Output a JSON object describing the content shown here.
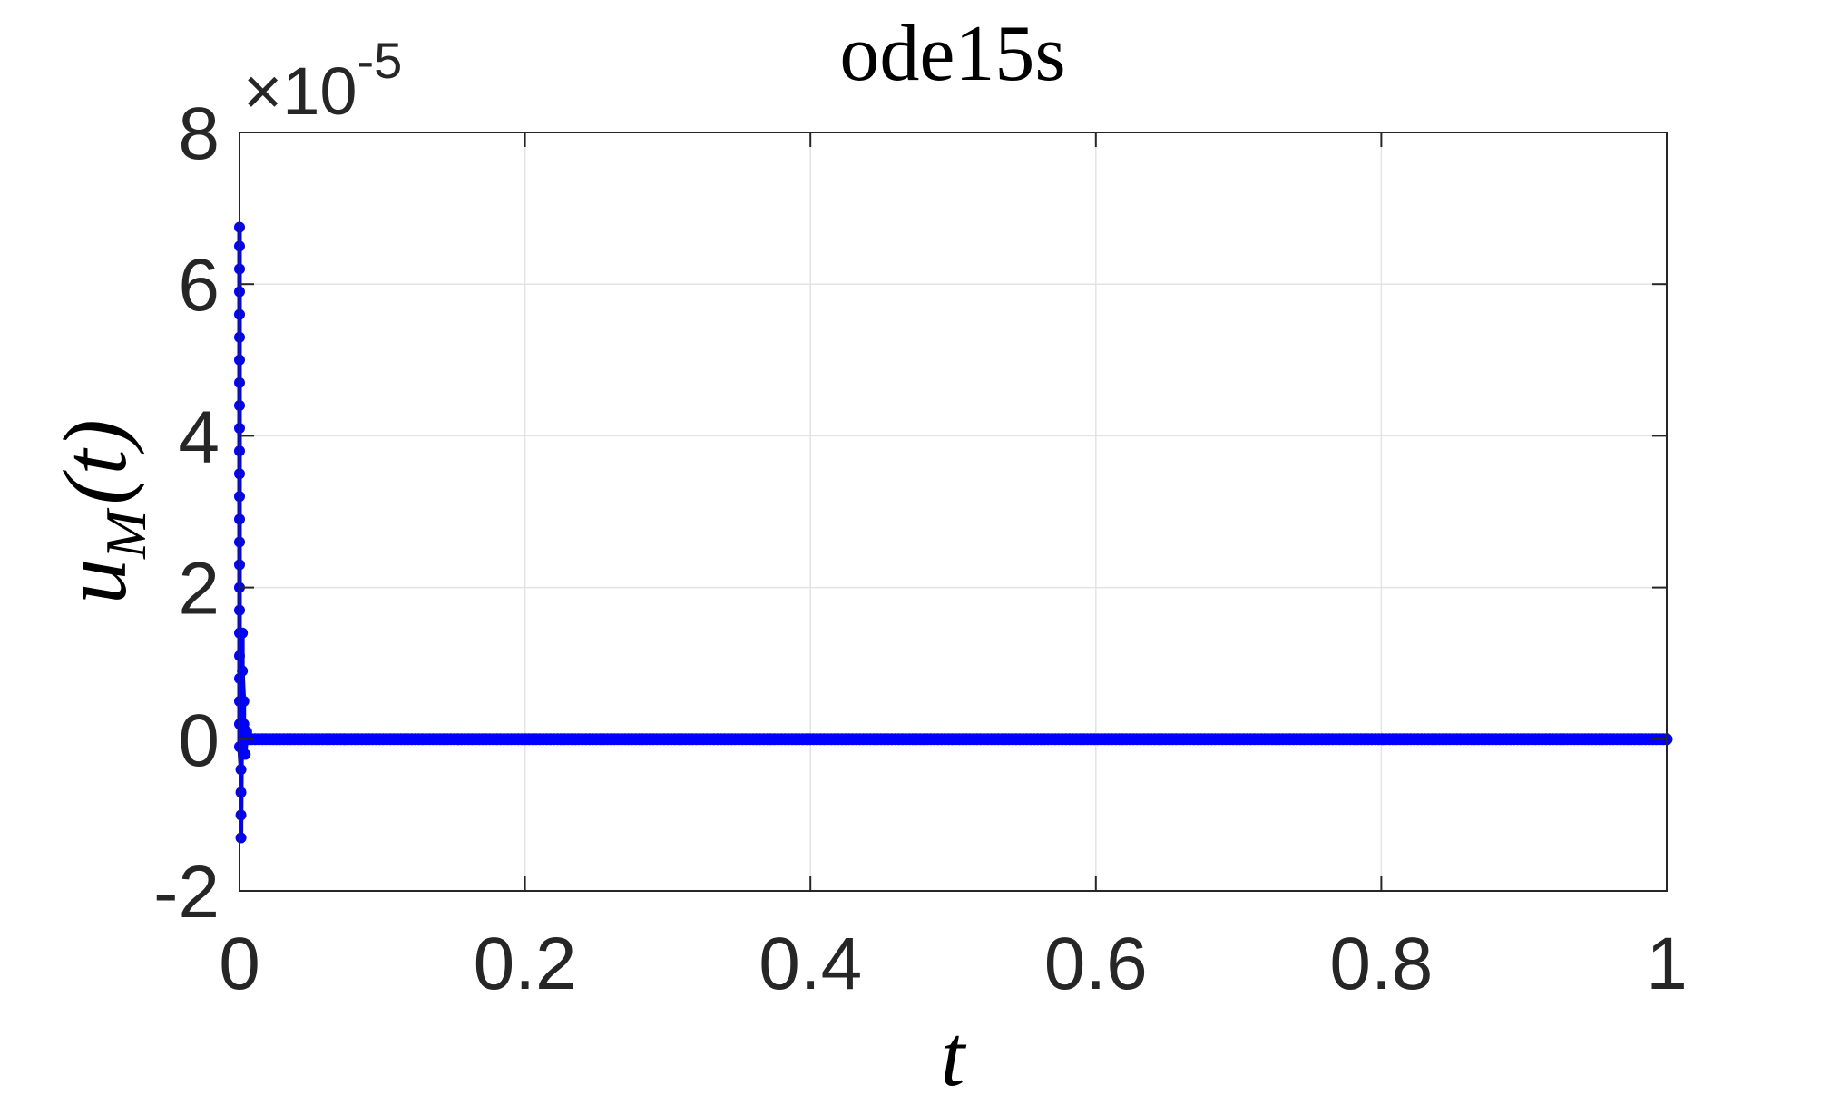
{
  "chart_data": {
    "type": "scatter",
    "title": "ode15s",
    "xlabel": "t",
    "ylabel": {
      "base": "u",
      "subscript": "M",
      "arg": "(t)"
    },
    "y_exponent": {
      "times": "×10",
      "power": "-5"
    },
    "xlim": [
      0,
      1
    ],
    "ylim": [
      -2,
      8
    ],
    "grid": true,
    "x_ticks": [
      {
        "value": 0,
        "label": "0"
      },
      {
        "value": 0.2,
        "label": "0.2"
      },
      {
        "value": 0.4,
        "label": "0.4"
      },
      {
        "value": 0.6,
        "label": "0.6"
      },
      {
        "value": 0.8,
        "label": "0.8"
      },
      {
        "value": 1,
        "label": "1"
      }
    ],
    "y_ticks": [
      {
        "value": -2,
        "label": "-2"
      },
      {
        "value": 0,
        "label": "0"
      },
      {
        "value": 2,
        "label": "2"
      },
      {
        "value": 4,
        "label": "4"
      },
      {
        "value": 6,
        "label": "6"
      },
      {
        "value": 8,
        "label": "8"
      }
    ],
    "series": [
      {
        "color": "#0000ff",
        "transient": {
          "x": [
            0,
            0,
            0,
            0,
            0,
            0,
            0,
            0,
            0,
            0,
            0,
            0,
            0,
            0,
            0,
            0,
            0,
            0,
            0,
            0,
            0,
            0,
            0,
            0,
            0.001,
            0.001,
            0.001,
            0.001,
            0.002,
            0.002,
            0.003,
            0.003,
            0.004,
            0.005,
            0.006
          ],
          "y": [
            6.75,
            6.5,
            6.2,
            5.9,
            5.6,
            5.3,
            5.0,
            4.7,
            4.4,
            4.1,
            3.8,
            3.5,
            3.2,
            2.9,
            2.6,
            2.3,
            2.0,
            1.7,
            1.4,
            1.1,
            0.8,
            0.5,
            0.2,
            -0.1,
            -0.4,
            -0.7,
            -1.0,
            -1.3,
            1.4,
            0.9,
            0.5,
            0.2,
            -0.2,
            0.1,
            0.0
          ]
        },
        "steady": {
          "x_start": 0.006,
          "x_end": 1,
          "y": 0,
          "count": 400
        }
      }
    ]
  }
}
